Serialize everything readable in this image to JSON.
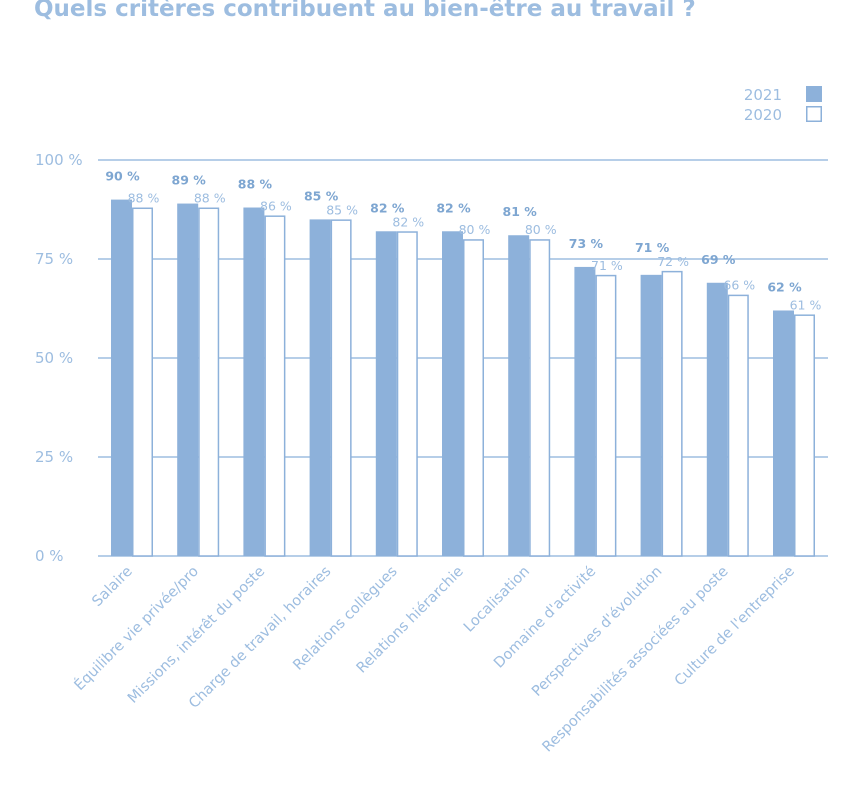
{
  "colors": {
    "bar_2021": "#8db1da",
    "bar_2020_fill": "#ffffff",
    "bar_2020_stroke": "#8db1da",
    "grid": "#9dbde0",
    "axis_text": "#9dbde0",
    "title": "#9dbde0",
    "label_2021": "#7ea6d1",
    "label_2020": "#9dbde0"
  },
  "chart_data": {
    "type": "bar",
    "title": "Quels critères contribuent au bien-être au travail ?",
    "xlabel": "",
    "ylabel": "",
    "ylim": [
      0,
      100
    ],
    "yticks": [
      0,
      25,
      50,
      75,
      100
    ],
    "ytick_labels": [
      "0 %",
      "25 %",
      "50 %",
      "75 %",
      "100 %"
    ],
    "grid": true,
    "legend_position": "top-right",
    "categories": [
      "Salaire",
      "Équilibre vie privée/pro",
      "Missions, intérêt du poste",
      "Charge de travail, horaires",
      "Relations collègues",
      "Relations hiérarchie",
      "Localisation",
      "Domaine d'activité",
      "Perspectives d'évolution",
      "Responsabilités associées au poste",
      "Culture de l'entreprise"
    ],
    "series": [
      {
        "name": "2021",
        "values": [
          90,
          89,
          88,
          85,
          82,
          82,
          81,
          73,
          71,
          69,
          62
        ],
        "labels": [
          "90 %",
          "89 %",
          "88 %",
          "85 %",
          "82 %",
          "82 %",
          "81 %",
          "73 %",
          "71 %",
          "69 %",
          "62 %"
        ]
      },
      {
        "name": "2020",
        "values": [
          88,
          88,
          86,
          85,
          82,
          80,
          80,
          71,
          72,
          66,
          61
        ],
        "labels": [
          "88 %",
          "88 %",
          "86 %",
          "85 %",
          "82 %",
          "80 %",
          "80 %",
          "71 %",
          "72 %",
          "66 %",
          "61 %"
        ]
      }
    ]
  }
}
